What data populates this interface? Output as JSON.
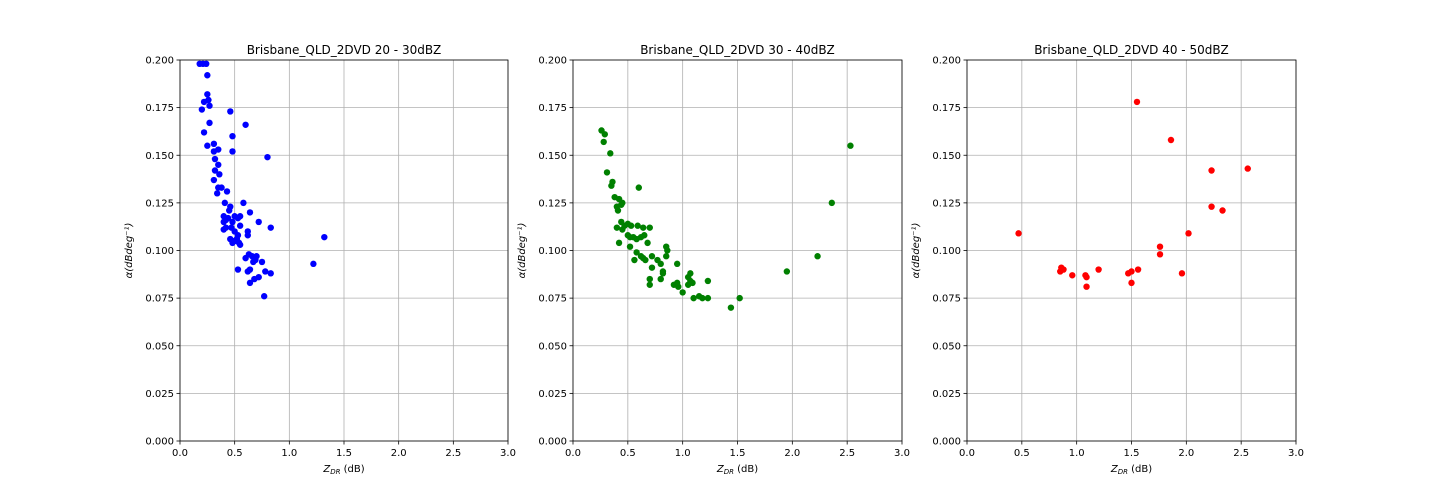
{
  "chart_data": [
    {
      "type": "scatter",
      "title": "Brisbane_QLD_2DVD 20 - 30dBZ",
      "xlabel_main": "Z",
      "xlabel_sub": "DR",
      "xlabel_unit": " (dB)",
      "ylabel": "α(dBdeg⁻¹)",
      "xlim": [
        0.0,
        3.0
      ],
      "ylim": [
        0.0,
        0.2
      ],
      "xticks": [
        "0.0",
        "0.5",
        "1.0",
        "1.5",
        "2.0",
        "2.5",
        "3.0"
      ],
      "yticks": [
        "0.000",
        "0.025",
        "0.050",
        "0.075",
        "0.100",
        "0.125",
        "0.150",
        "0.175",
        "0.200"
      ],
      "grid": true,
      "color": "#0000ff",
      "points": [
        [
          0.18,
          0.198
        ],
        [
          0.21,
          0.198
        ],
        [
          0.24,
          0.198
        ],
        [
          0.25,
          0.192
        ],
        [
          0.25,
          0.182
        ],
        [
          0.26,
          0.179
        ],
        [
          0.27,
          0.176
        ],
        [
          0.2,
          0.174
        ],
        [
          0.22,
          0.178
        ],
        [
          0.46,
          0.173
        ],
        [
          0.27,
          0.167
        ],
        [
          0.6,
          0.166
        ],
        [
          0.22,
          0.162
        ],
        [
          0.48,
          0.16
        ],
        [
          0.25,
          0.155
        ],
        [
          0.31,
          0.156
        ],
        [
          0.31,
          0.152
        ],
        [
          0.35,
          0.153
        ],
        [
          0.48,
          0.152
        ],
        [
          0.32,
          0.148
        ],
        [
          0.8,
          0.149
        ],
        [
          0.35,
          0.145
        ],
        [
          0.32,
          0.142
        ],
        [
          0.36,
          0.14
        ],
        [
          0.31,
          0.137
        ],
        [
          0.35,
          0.133
        ],
        [
          0.38,
          0.133
        ],
        [
          0.34,
          0.13
        ],
        [
          0.43,
          0.131
        ],
        [
          0.41,
          0.125
        ],
        [
          0.46,
          0.123
        ],
        [
          0.45,
          0.121
        ],
        [
          0.58,
          0.125
        ],
        [
          0.5,
          0.118
        ],
        [
          0.4,
          0.118
        ],
        [
          0.42,
          0.116
        ],
        [
          0.4,
          0.115
        ],
        [
          0.44,
          0.117
        ],
        [
          0.48,
          0.115
        ],
        [
          0.55,
          0.118
        ],
        [
          0.53,
          0.117
        ],
        [
          0.64,
          0.12
        ],
        [
          0.62,
          0.11
        ],
        [
          0.62,
          0.108
        ],
        [
          0.4,
          0.111
        ],
        [
          0.42,
          0.112
        ],
        [
          0.47,
          0.112
        ],
        [
          0.5,
          0.11
        ],
        [
          0.55,
          0.113
        ],
        [
          0.72,
          0.115
        ],
        [
          0.83,
          0.112
        ],
        [
          0.46,
          0.106
        ],
        [
          0.48,
          0.104
        ],
        [
          0.5,
          0.105
        ],
        [
          0.52,
          0.106
        ],
        [
          0.55,
          0.103
        ],
        [
          0.53,
          0.108
        ],
        [
          0.54,
          0.104
        ],
        [
          1.32,
          0.107
        ],
        [
          0.6,
          0.096
        ],
        [
          0.63,
          0.098
        ],
        [
          0.66,
          0.097
        ],
        [
          0.69,
          0.095
        ],
        [
          0.67,
          0.094
        ],
        [
          0.7,
          0.097
        ],
        [
          0.75,
          0.094
        ],
        [
          1.22,
          0.093
        ],
        [
          0.53,
          0.09
        ],
        [
          0.62,
          0.089
        ],
        [
          0.64,
          0.09
        ],
        [
          0.78,
          0.089
        ],
        [
          0.83,
          0.088
        ],
        [
          0.68,
          0.085
        ],
        [
          0.72,
          0.086
        ],
        [
          0.64,
          0.083
        ],
        [
          0.77,
          0.076
        ]
      ]
    },
    {
      "type": "scatter",
      "title": "Brisbane_QLD_2DVD 30 - 40dBZ",
      "xlabel_main": "Z",
      "xlabel_sub": "DR",
      "xlabel_unit": " (dB)",
      "ylabel": "α(dBdeg⁻¹)",
      "xlim": [
        0.0,
        3.0
      ],
      "ylim": [
        0.0,
        0.2
      ],
      "xticks": [
        "0.0",
        "0.5",
        "1.0",
        "1.5",
        "2.0",
        "2.5",
        "3.0"
      ],
      "yticks": [
        "0.000",
        "0.025",
        "0.050",
        "0.075",
        "0.100",
        "0.125",
        "0.150",
        "0.175",
        "0.200"
      ],
      "grid": true,
      "color": "#008000",
      "points": [
        [
          0.26,
          0.163
        ],
        [
          0.29,
          0.161
        ],
        [
          0.28,
          0.157
        ],
        [
          0.34,
          0.151
        ],
        [
          0.31,
          0.141
        ],
        [
          0.36,
          0.136
        ],
        [
          0.35,
          0.134
        ],
        [
          0.6,
          0.133
        ],
        [
          0.38,
          0.128
        ],
        [
          0.42,
          0.127
        ],
        [
          0.44,
          0.124
        ],
        [
          0.4,
          0.123
        ],
        [
          0.41,
          0.121
        ],
        [
          0.45,
          0.125
        ],
        [
          0.44,
          0.115
        ],
        [
          0.47,
          0.113
        ],
        [
          0.4,
          0.112
        ],
        [
          0.45,
          0.111
        ],
        [
          0.5,
          0.114
        ],
        [
          0.53,
          0.113
        ],
        [
          0.59,
          0.113
        ],
        [
          0.64,
          0.112
        ],
        [
          0.7,
          0.112
        ],
        [
          0.5,
          0.108
        ],
        [
          0.52,
          0.107
        ],
        [
          0.55,
          0.107
        ],
        [
          0.58,
          0.106
        ],
        [
          0.62,
          0.107
        ],
        [
          0.65,
          0.108
        ],
        [
          0.42,
          0.104
        ],
        [
          0.52,
          0.102
        ],
        [
          0.68,
          0.104
        ],
        [
          0.58,
          0.099
        ],
        [
          0.62,
          0.097
        ],
        [
          0.64,
          0.096
        ],
        [
          0.66,
          0.095
        ],
        [
          0.56,
          0.095
        ],
        [
          0.72,
          0.097
        ],
        [
          0.77,
          0.095
        ],
        [
          0.85,
          0.102
        ],
        [
          0.86,
          0.1
        ],
        [
          0.85,
          0.097
        ],
        [
          0.8,
          0.093
        ],
        [
          0.72,
          0.091
        ],
        [
          0.82,
          0.089
        ],
        [
          0.82,
          0.088
        ],
        [
          0.95,
          0.093
        ],
        [
          0.8,
          0.085
        ],
        [
          0.7,
          0.085
        ],
        [
          0.7,
          0.082
        ],
        [
          0.92,
          0.082
        ],
        [
          0.96,
          0.081
        ],
        [
          0.95,
          0.083
        ],
        [
          1.05,
          0.082
        ],
        [
          1.05,
          0.086
        ],
        [
          1.07,
          0.088
        ],
        [
          1.07,
          0.084
        ],
        [
          1.09,
          0.083
        ],
        [
          1.0,
          0.078
        ],
        [
          1.1,
          0.075
        ],
        [
          1.15,
          0.076
        ],
        [
          1.18,
          0.075
        ],
        [
          1.23,
          0.075
        ],
        [
          1.23,
          0.084
        ],
        [
          1.44,
          0.07
        ],
        [
          1.52,
          0.075
        ],
        [
          1.95,
          0.089
        ],
        [
          2.23,
          0.097
        ],
        [
          2.36,
          0.125
        ],
        [
          2.53,
          0.155
        ]
      ]
    },
    {
      "type": "scatter",
      "title": "Brisbane_QLD_2DVD 40 - 50dBZ",
      "xlabel_main": "Z",
      "xlabel_sub": "DR",
      "xlabel_unit": " (dB)",
      "ylabel": "α(dBdeg⁻¹)",
      "xlim": [
        0.0,
        3.0
      ],
      "ylim": [
        0.0,
        0.2
      ],
      "xticks": [
        "0.0",
        "0.5",
        "1.0",
        "1.5",
        "2.0",
        "2.5",
        "3.0"
      ],
      "yticks": [
        "0.000",
        "0.025",
        "0.050",
        "0.075",
        "0.100",
        "0.125",
        "0.150",
        "0.175",
        "0.200"
      ],
      "grid": true,
      "color": "#ff0000",
      "points": [
        [
          0.47,
          0.109
        ],
        [
          0.85,
          0.089
        ],
        [
          0.88,
          0.09
        ],
        [
          0.86,
          0.091
        ],
        [
          0.96,
          0.087
        ],
        [
          1.08,
          0.087
        ],
        [
          1.09,
          0.086
        ],
        [
          1.09,
          0.081
        ],
        [
          1.2,
          0.09
        ],
        [
          1.47,
          0.088
        ],
        [
          1.5,
          0.089
        ],
        [
          1.5,
          0.083
        ],
        [
          1.56,
          0.09
        ],
        [
          1.55,
          0.178
        ],
        [
          1.76,
          0.102
        ],
        [
          1.76,
          0.098
        ],
        [
          1.86,
          0.158
        ],
        [
          1.96,
          0.088
        ],
        [
          2.02,
          0.109
        ],
        [
          2.23,
          0.142
        ],
        [
          2.23,
          0.123
        ],
        [
          2.33,
          0.121
        ],
        [
          2.56,
          0.143
        ]
      ]
    }
  ]
}
